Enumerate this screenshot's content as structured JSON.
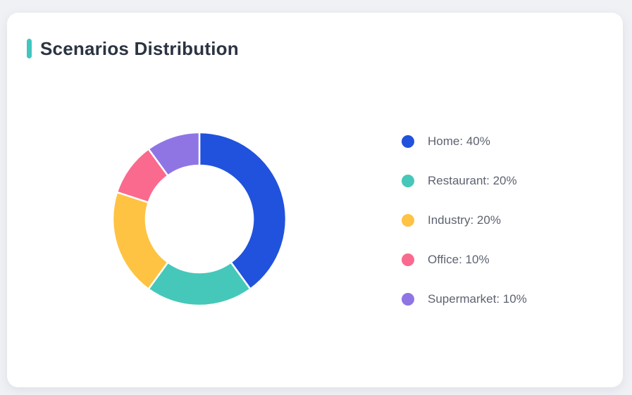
{
  "page": {
    "background": "#eff1f5"
  },
  "card": {
    "title": "Scenarios Distribution",
    "accent_color": "#41c6c0",
    "background": "#ffffff"
  },
  "chart_data": {
    "type": "pie",
    "subtype": "donut",
    "title": "Scenarios Distribution",
    "categories": [
      "Home",
      "Restaurant",
      "Industry",
      "Office",
      "Supermarket"
    ],
    "values": [
      40,
      20,
      20,
      10,
      10
    ],
    "unit": "%",
    "colors": [
      "#2152dd",
      "#45c8ba",
      "#fec342",
      "#fa6a8e",
      "#8f75e4"
    ],
    "start_angle_deg": 0,
    "direction": "clockwise",
    "inner_radius_ratio": 0.62,
    "segment_gap_color": "#ffffff",
    "legend_position": "right",
    "legend": [
      {
        "label": "Home",
        "value": 40,
        "display": "Home: 40%",
        "color": "#2152dd"
      },
      {
        "label": "Restaurant",
        "value": 20,
        "display": "Restaurant: 20%",
        "color": "#45c8ba"
      },
      {
        "label": "Industry",
        "value": 20,
        "display": "Industry: 20%",
        "color": "#fec342"
      },
      {
        "label": "Office",
        "value": 10,
        "display": "Office: 10%",
        "color": "#fa6a8e"
      },
      {
        "label": "Supermarket",
        "value": 10,
        "display": "Supermarket: 10%",
        "color": "#8f75e4"
      }
    ]
  }
}
